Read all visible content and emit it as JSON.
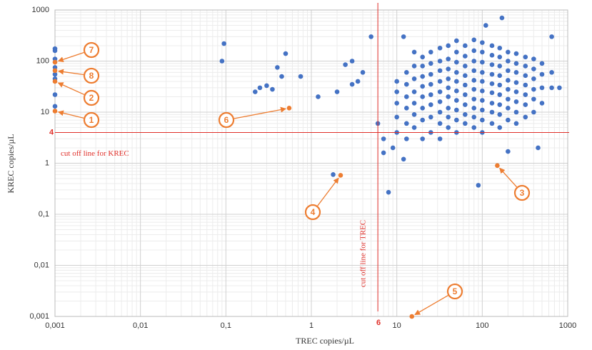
{
  "chart_data": {
    "type": "scatter",
    "x_label": "TREC copies/µL",
    "y_label": "KREC copies/µL",
    "xscale": "log",
    "yscale": "log",
    "xlim": [
      0.001,
      1000
    ],
    "ylim": [
      0.001,
      1000
    ],
    "xticks": [
      {
        "value": 0.001,
        "label": "0,001"
      },
      {
        "value": 0.01,
        "label": "0,01"
      },
      {
        "value": 0.1,
        "label": "0,1"
      },
      1,
      10,
      100,
      1000
    ],
    "yticks": [
      {
        "value": 0.001,
        "label": "0,001"
      },
      {
        "value": 0.01,
        "label": "0,01"
      },
      {
        "value": 0.1,
        "label": "0,1"
      },
      1,
      10,
      100,
      1000
    ],
    "grid": true,
    "cutoff_lines": [
      {
        "axis": "x",
        "value": 6,
        "label": "6",
        "text": "cut off line for TREC",
        "color": "#e0302a"
      },
      {
        "axis": "y",
        "value": 4,
        "label": "4",
        "text": "cut off line for KREC",
        "color": "#e0302a"
      }
    ],
    "series": [
      {
        "color": "#4472c4",
        "x": [
          0.001,
          0.001,
          0.001,
          0.001,
          0.001,
          0.001,
          0.001,
          0.001,
          0.09,
          0.095,
          0.22,
          0.25,
          0.3,
          0.35,
          0.4,
          0.45,
          0.5,
          0.75,
          1.2,
          1.8,
          8,
          90,
          450,
          200,
          2,
          3,
          4,
          5,
          2.5,
          3,
          3.5,
          6,
          7,
          7,
          9,
          12,
          170,
          110,
          12,
          650,
          10,
          10,
          10,
          10,
          10,
          13,
          13,
          13,
          13,
          13,
          13,
          16,
          16,
          16,
          16,
          16,
          16,
          16,
          20,
          20,
          20,
          20,
          20,
          20,
          20,
          20,
          25,
          25,
          25,
          25,
          25,
          25,
          25,
          25,
          32,
          32,
          32,
          32,
          32,
          32,
          32,
          32,
          32,
          40,
          40,
          40,
          40,
          40,
          40,
          40,
          40,
          40,
          50,
          50,
          50,
          50,
          50,
          50,
          50,
          50,
          50,
          50,
          63,
          63,
          63,
          63,
          63,
          63,
          63,
          63,
          63,
          80,
          80,
          80,
          80,
          80,
          80,
          80,
          80,
          80,
          80,
          100,
          100,
          100,
          100,
          100,
          100,
          100,
          100,
          100,
          100,
          130,
          130,
          130,
          130,
          130,
          130,
          130,
          130,
          130,
          160,
          160,
          160,
          160,
          160,
          160,
          160,
          160,
          160,
          200,
          200,
          200,
          200,
          200,
          200,
          200,
          200,
          250,
          250,
          250,
          250,
          250,
          250,
          250,
          250,
          320,
          320,
          320,
          320,
          320,
          320,
          320,
          400,
          400,
          400,
          400,
          400,
          400,
          500,
          500,
          500,
          500,
          650,
          650,
          800
        ],
        "values": [
          175,
          160,
          110,
          75,
          55,
          45,
          22,
          13,
          100,
          220,
          25,
          30,
          33,
          28,
          75,
          50,
          140,
          50,
          20,
          0.6,
          0.27,
          0.37,
          2,
          1.7,
          25,
          35,
          60,
          300,
          85,
          100,
          40,
          6,
          3,
          1.6,
          2,
          1.2,
          700,
          500,
          300,
          300,
          4,
          8,
          15,
          25,
          40,
          3,
          6,
          12,
          20,
          35,
          60,
          5,
          9,
          15,
          25,
          45,
          80,
          150,
          3,
          7,
          12,
          20,
          32,
          50,
          80,
          120,
          4,
          8,
          14,
          22,
          35,
          55,
          90,
          150,
          3,
          6,
          10,
          16,
          25,
          40,
          65,
          100,
          180,
          5,
          8,
          12,
          20,
          30,
          45,
          70,
          110,
          200,
          4,
          7,
          11,
          17,
          26,
          40,
          60,
          95,
          150,
          250,
          6,
          9,
          14,
          22,
          34,
          52,
          80,
          125,
          200,
          5,
          8,
          12,
          18,
          28,
          42,
          65,
          100,
          160,
          260,
          4,
          7,
          11,
          17,
          26,
          40,
          60,
          95,
          150,
          230,
          6,
          10,
          15,
          24,
          36,
          55,
          85,
          130,
          200,
          5,
          9,
          14,
          22,
          34,
          52,
          80,
          120,
          180,
          7,
          12,
          18,
          28,
          42,
          65,
          100,
          150,
          6,
          10,
          16,
          25,
          38,
          60,
          90,
          140,
          8,
          14,
          22,
          34,
          52,
          80,
          120,
          10,
          18,
          28,
          45,
          70,
          110,
          15,
          30,
          55,
          90,
          30,
          60,
          30
        ]
      },
      {
        "color": "#ed7d31",
        "x": [
          0.001,
          0.001,
          0.001,
          0.001,
          0.55,
          2.2,
          150,
          15
        ],
        "values": [
          10.5,
          40,
          65,
          95,
          12,
          0.58,
          0.9,
          0.001
        ],
        "point_labels": [
          "1",
          "2",
          "8",
          "7",
          "6",
          "4",
          "3",
          "5"
        ]
      }
    ]
  }
}
